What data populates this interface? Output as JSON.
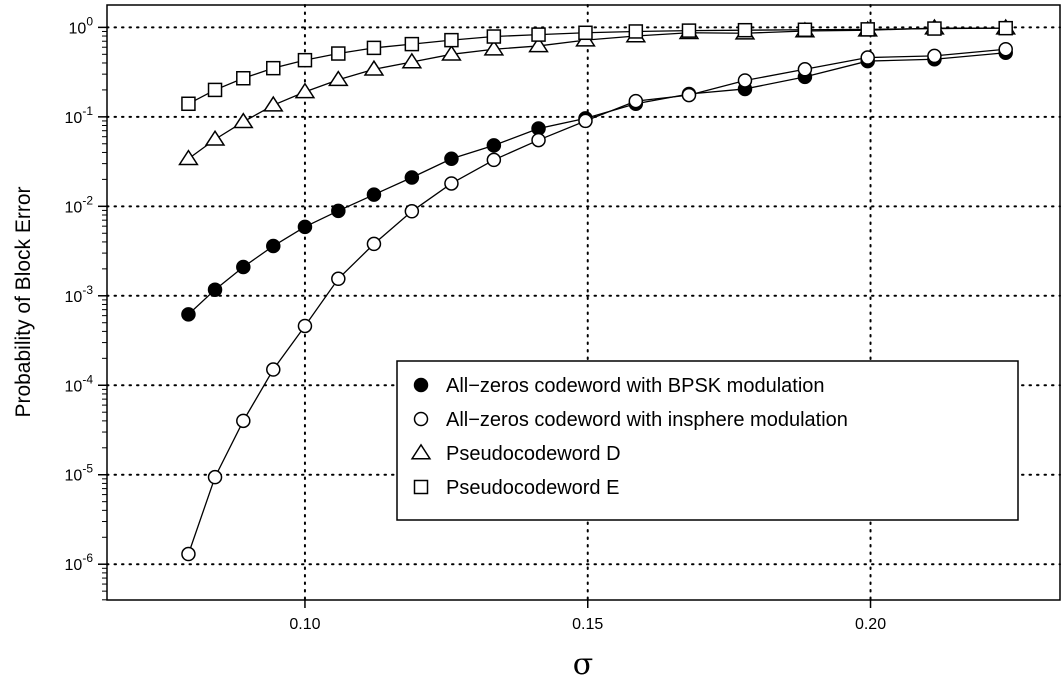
{
  "chart_data": {
    "type": "line",
    "xlabel": "σ",
    "ylabel": "Probability of Block Error",
    "xlim": [
      0.065,
      0.2335
    ],
    "ylim_log10": [
      -6.4,
      0.25
    ],
    "y_scale": "log10",
    "grid": true,
    "legend_position": "lower-right",
    "x_ticks": [
      0.1,
      0.15,
      0.2
    ],
    "x_tick_labels": [
      "0.10",
      "0.15",
      "0.20"
    ],
    "y_ticks": [
      {
        "exp": 0,
        "base": "10",
        "sup": "0"
      },
      {
        "exp": -1,
        "base": "10",
        "sup": "-1"
      },
      {
        "exp": -2,
        "base": "10",
        "sup": "-2"
      },
      {
        "exp": -3,
        "base": "10",
        "sup": "-3"
      },
      {
        "exp": -4,
        "base": "10",
        "sup": "-4"
      },
      {
        "exp": -5,
        "base": "10",
        "sup": "-5"
      },
      {
        "exp": -6,
        "base": "10",
        "sup": "-6"
      }
    ],
    "series": [
      {
        "name": "All−zeros codeword with BPSK modulation",
        "marker": "filled-circle",
        "x": [
          0.0794,
          0.0841,
          0.0891,
          0.0944,
          0.1,
          0.1059,
          0.1122,
          0.1189,
          0.1259,
          0.1334,
          0.1413,
          0.1496,
          0.1585,
          0.1679,
          0.1778,
          0.1884,
          0.1995,
          0.2113,
          0.2239
        ],
        "y": [
          0.00062,
          0.00117,
          0.0021,
          0.0036,
          0.0059,
          0.0089,
          0.0135,
          0.021,
          0.034,
          0.048,
          0.074,
          0.096,
          0.14,
          0.18,
          0.205,
          0.28,
          0.42,
          0.44,
          0.52
        ]
      },
      {
        "name": "All−zeros codeword with insphere modulation",
        "marker": "open-circle",
        "x": [
          0.0794,
          0.0841,
          0.0891,
          0.0944,
          0.1,
          0.1059,
          0.1122,
          0.1189,
          0.1259,
          0.1334,
          0.1413,
          0.1496,
          0.1585,
          0.1679,
          0.1778,
          0.1884,
          0.1995,
          0.2113,
          0.2239
        ],
        "y": [
          1.3e-06,
          9.4e-06,
          4e-05,
          0.00015,
          0.00046,
          0.00155,
          0.0038,
          0.0088,
          0.018,
          0.033,
          0.055,
          0.09,
          0.15,
          0.175,
          0.255,
          0.34,
          0.46,
          0.48,
          0.57
        ]
      },
      {
        "name": "Pseudocodeword D",
        "marker": "open-triangle",
        "x": [
          0.0794,
          0.0841,
          0.0891,
          0.0944,
          0.1,
          0.1059,
          0.1122,
          0.1189,
          0.1259,
          0.1334,
          0.1413,
          0.1496,
          0.1585,
          0.1679,
          0.1778,
          0.1884,
          0.1995,
          0.2113,
          0.2239
        ],
        "y": [
          0.034,
          0.056,
          0.088,
          0.135,
          0.19,
          0.26,
          0.34,
          0.41,
          0.5,
          0.57,
          0.62,
          0.72,
          0.8,
          0.87,
          0.86,
          0.91,
          0.93,
          0.98,
          0.98
        ]
      },
      {
        "name": "Pseudocodeword E",
        "marker": "open-square",
        "x": [
          0.0794,
          0.0841,
          0.0891,
          0.0944,
          0.1,
          0.1059,
          0.1122,
          0.1189,
          0.1259,
          0.1334,
          0.1413,
          0.1496,
          0.1585,
          0.1679,
          0.1778,
          0.1884,
          0.1995,
          0.2113,
          0.2239
        ],
        "y": [
          0.14,
          0.2,
          0.27,
          0.35,
          0.43,
          0.51,
          0.59,
          0.65,
          0.72,
          0.79,
          0.83,
          0.87,
          0.9,
          0.92,
          0.93,
          0.94,
          0.95,
          0.97,
          0.98
        ]
      }
    ]
  }
}
